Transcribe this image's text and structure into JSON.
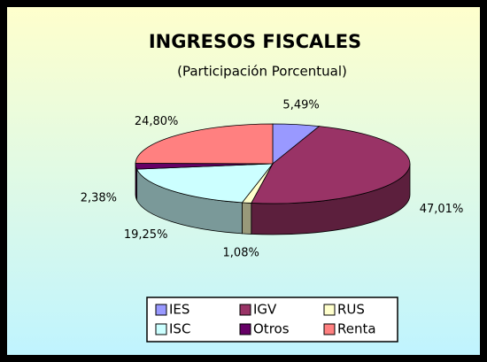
{
  "chart_data": {
    "type": "pie",
    "title": "INGRESOS FISCALES",
    "subtitle": "(Participación Porcentual)",
    "categories": [
      "IES",
      "IGV",
      "RUS",
      "ISC",
      "Otros",
      "Renta"
    ],
    "values": [
      5.49,
      47.01,
      1.08,
      19.25,
      2.38,
      24.8
    ],
    "value_labels": [
      "5,49%",
      "47,01%",
      "1,08%",
      "19,25%",
      "2,38%",
      "24,80%"
    ],
    "colors": [
      "#9999ff",
      "#993366",
      "#ffffcc",
      "#ccffff",
      "#660066",
      "#ff8080"
    ],
    "legend": "bottom"
  }
}
